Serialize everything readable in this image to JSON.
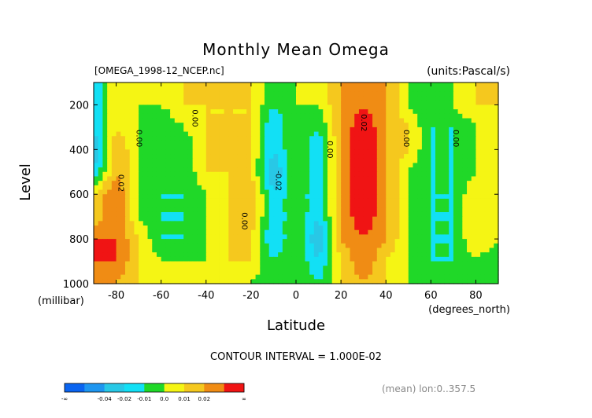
{
  "chart_data": {
    "type": "heatmap",
    "title": "Monthly Mean Omega",
    "file_label": "[OMEGA_1998-12_NCEP.nc]",
    "units_label": "(units:Pascal/s)",
    "xlabel": "Latitude",
    "xunit_label": "(degrees_north)",
    "ylabel": "Level",
    "yunit_label": "(millibar)",
    "xlim": [
      -90,
      90
    ],
    "ylim": [
      1000,
      100
    ],
    "x_ticks": [
      "-80",
      "-60",
      "-40",
      "-20",
      "0",
      "20",
      "40",
      "60",
      "80"
    ],
    "x_tick_values": [
      -80,
      -60,
      -40,
      -20,
      0,
      20,
      40,
      60,
      80
    ],
    "y_ticks": [
      "200",
      "400",
      "600",
      "800",
      "1000"
    ],
    "y_tick_values": [
      200,
      400,
      600,
      800,
      1000
    ],
    "contour_interval_text": "CONTOUR INTERVAL = 1.000E-02",
    "footer_text": "(mean) lon:0..357.5",
    "contour_labels": [
      {
        "text": "0.00",
        "lat": -71,
        "lev": 350
      },
      {
        "text": "0.02",
        "lat": -79,
        "lev": 550
      },
      {
        "text": "0.00",
        "lat": -46,
        "lev": 260
      },
      {
        "text": "0.00",
        "lat": -24,
        "lev": 720
      },
      {
        "text": "-0.02",
        "lat": -9,
        "lev": 540
      },
      {
        "text": "0.00",
        "lat": 14,
        "lev": 400
      },
      {
        "text": "0.02",
        "lat": 29,
        "lev": 280
      },
      {
        "text": "0.00",
        "lat": 48,
        "lev": 350
      },
      {
        "text": "0.00",
        "lat": 70,
        "lev": 350
      }
    ],
    "colorbar": {
      "colors": [
        "#0a64f0",
        "#1e96f0",
        "#28c8e6",
        "#12e0f5",
        "#20d828",
        "#f5f514",
        "#f5c81e",
        "#f08c14",
        "#f01414"
      ],
      "labels": [
        "-∞",
        "-0.04",
        "-0.02",
        "-0.01",
        "0.0",
        "0.01",
        "0.02",
        "∞"
      ]
    },
    "levels": [
      200,
      300,
      400,
      500,
      600,
      700,
      800,
      900,
      1000
    ],
    "latitudes": [
      -90,
      -80,
      -70,
      -60,
      -50,
      -40,
      -30,
      -20,
      -10,
      0,
      10,
      20,
      30,
      40,
      50,
      60,
      70,
      80,
      90
    ],
    "omega": [
      [
        -0.02,
        0.01,
        0.0,
        0.0,
        0.01,
        0.01,
        0.01,
        0.01,
        -0.01,
        0.0,
        0.0,
        0.02,
        0.03,
        0.02,
        0.0,
        -0.01,
        0.0,
        0.01,
        0.01
      ],
      [
        -0.02,
        0.01,
        0.0,
        -0.01,
        0.0,
        0.01,
        0.01,
        0.01,
        -0.02,
        0.0,
        -0.01,
        0.02,
        0.04,
        0.02,
        0.01,
        -0.01,
        -0.01,
        0.0,
        0.01
      ],
      [
        -0.03,
        0.02,
        0.0,
        -0.01,
        -0.01,
        0.01,
        0.01,
        0.01,
        -0.02,
        0.0,
        -0.02,
        0.02,
        0.04,
        0.02,
        0.01,
        -0.01,
        -0.01,
        0.0,
        0.0
      ],
      [
        -0.02,
        0.02,
        0.0,
        -0.01,
        -0.01,
        0.01,
        0.01,
        0.01,
        -0.03,
        0.0,
        -0.02,
        0.02,
        0.04,
        0.02,
        0.0,
        -0.01,
        -0.01,
        0.0,
        0.0
      ],
      [
        0.01,
        0.03,
        0.0,
        -0.01,
        -0.01,
        0.0,
        0.01,
        0.02,
        -0.02,
        0.0,
        -0.02,
        0.02,
        0.04,
        0.02,
        0.0,
        -0.01,
        -0.01,
        0.01,
        0.0
      ],
      [
        0.01,
        0.03,
        0.0,
        -0.01,
        -0.01,
        0.0,
        0.01,
        0.02,
        -0.02,
        0.0,
        -0.02,
        0.02,
        0.04,
        0.02,
        0.0,
        -0.01,
        -0.01,
        0.01,
        0.0
      ],
      [
        0.03,
        0.03,
        0.01,
        -0.01,
        -0.01,
        0.0,
        0.01,
        0.01,
        -0.02,
        0.0,
        -0.03,
        0.02,
        0.03,
        0.02,
        0.0,
        -0.01,
        -0.01,
        0.01,
        0.0
      ],
      [
        0.03,
        0.03,
        0.01,
        0.0,
        0.0,
        0.0,
        0.01,
        0.01,
        -0.01,
        0.0,
        -0.02,
        0.01,
        0.03,
        0.01,
        0.0,
        -0.01,
        -0.01,
        0.0,
        -0.01
      ],
      [
        0.03,
        0.02,
        0.01,
        0.0,
        0.0,
        0.0,
        0.0,
        0.0,
        -0.01,
        0.0,
        -0.01,
        0.01,
        0.02,
        0.01,
        0.0,
        0.0,
        -0.01,
        0.0,
        -0.01
      ]
    ]
  }
}
